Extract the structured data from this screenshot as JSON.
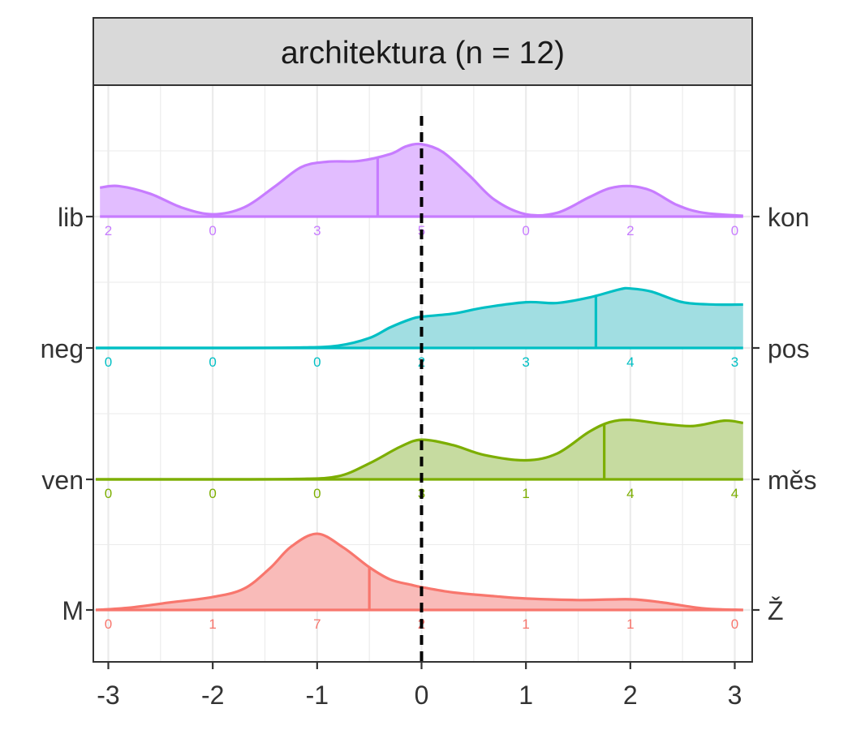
{
  "chart_data": {
    "type": "ridgeline-density",
    "title": "architektura (n = 12)",
    "xlabel": "",
    "ylabel": "",
    "xlim": [
      -3.1,
      3.1
    ],
    "x_ticks": [
      "-3",
      "-2",
      "-1",
      "0",
      "1",
      "2",
      "3"
    ],
    "x_tick_values": [
      -3,
      -2,
      -1,
      0,
      1,
      2,
      3
    ],
    "reference_line_x": 0,
    "grid": true,
    "rows": [
      {
        "left_label": "lib",
        "right_label": "kon",
        "color": "#C77CFF",
        "fill": "#E2BDFF",
        "counts": [
          2,
          0,
          3,
          5,
          0,
          2,
          0
        ],
        "count_labels": [
          "2",
          "0",
          "3",
          "5",
          "0",
          "2",
          "0"
        ],
        "mean": -0.42,
        "density_x": [
          -3.08,
          -2.9,
          -2.6,
          -2.3,
          -2.0,
          -1.7,
          -1.4,
          -1.15,
          -0.9,
          -0.6,
          -0.3,
          -0.15,
          0.0,
          0.2,
          0.45,
          0.7,
          1.0,
          1.3,
          1.6,
          1.8,
          2.0,
          2.2,
          2.45,
          2.7,
          3.08
        ],
        "density_y": [
          0.38,
          0.4,
          0.3,
          0.12,
          0.03,
          0.12,
          0.4,
          0.65,
          0.72,
          0.73,
          0.82,
          0.92,
          0.95,
          0.85,
          0.55,
          0.22,
          0.03,
          0.05,
          0.25,
          0.37,
          0.4,
          0.34,
          0.15,
          0.05,
          0.01
        ]
      },
      {
        "left_label": "neg",
        "right_label": "pos",
        "color": "#00BFC4",
        "fill": "#A1DEE2",
        "counts": [
          0,
          0,
          0,
          2,
          3,
          4,
          3
        ],
        "count_labels": [
          "0",
          "0",
          "0",
          "2",
          "3",
          "4",
          "3"
        ],
        "mean": 1.67,
        "density_x": [
          -3.12,
          -2.0,
          -1.2,
          -0.8,
          -0.5,
          -0.3,
          -0.1,
          0.0,
          0.3,
          0.6,
          1.0,
          1.3,
          1.6,
          1.9,
          2.0,
          2.2,
          2.5,
          2.8,
          3.08
        ],
        "density_y": [
          0.0,
          0.0,
          0.005,
          0.03,
          0.13,
          0.27,
          0.38,
          0.41,
          0.45,
          0.53,
          0.6,
          0.59,
          0.66,
          0.77,
          0.78,
          0.74,
          0.6,
          0.57,
          0.57
        ]
      },
      {
        "left_label": "ven",
        "right_label": "měs",
        "color": "#7CAE00",
        "fill": "#C6DBA0",
        "counts": [
          0,
          0,
          0,
          3,
          1,
          4,
          4
        ],
        "count_labels": [
          "0",
          "0",
          "0",
          "3",
          "1",
          "4",
          "4"
        ],
        "mean": 1.75,
        "density_x": [
          -3.12,
          -2.0,
          -1.2,
          -0.8,
          -0.5,
          -0.2,
          0.0,
          0.3,
          0.6,
          1.0,
          1.3,
          1.6,
          1.8,
          2.0,
          2.3,
          2.6,
          2.9,
          3.08
        ],
        "density_y": [
          0.0,
          0.0,
          0.005,
          0.04,
          0.21,
          0.43,
          0.52,
          0.45,
          0.32,
          0.25,
          0.34,
          0.62,
          0.75,
          0.78,
          0.73,
          0.7,
          0.77,
          0.74
        ]
      },
      {
        "left_label": "M",
        "right_label": "Ž",
        "color": "#F8766D",
        "fill": "#F9BBB9",
        "counts": [
          0,
          1,
          7,
          2,
          1,
          1,
          0
        ],
        "count_labels": [
          "0",
          "1",
          "7",
          "2",
          "1",
          "1",
          "0"
        ],
        "mean": -0.5,
        "density_x": [
          -3.12,
          -2.8,
          -2.4,
          -2.0,
          -1.7,
          -1.45,
          -1.25,
          -1.0,
          -0.75,
          -0.5,
          -0.3,
          -0.1,
          0.0,
          0.3,
          0.7,
          1.0,
          1.5,
          2.0,
          2.3,
          2.7,
          3.08
        ],
        "density_y": [
          0.0,
          0.03,
          0.1,
          0.17,
          0.28,
          0.55,
          0.83,
          1.0,
          0.82,
          0.56,
          0.4,
          0.33,
          0.3,
          0.23,
          0.18,
          0.15,
          0.13,
          0.14,
          0.1,
          0.02,
          0.0
        ]
      }
    ]
  }
}
